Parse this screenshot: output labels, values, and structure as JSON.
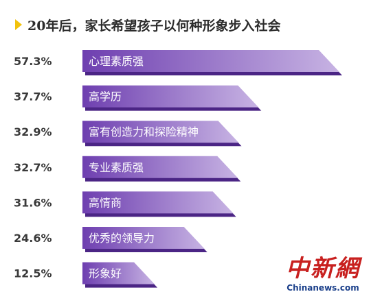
{
  "chart_data": {
    "type": "bar",
    "orientation": "horizontal",
    "title": "20年后，家长希望孩子以何种形象步入社会",
    "categories": [
      "心理素质强",
      "高学历",
      "富有创造力和探险精神",
      "专业素质强",
      "高情商",
      "优秀的领导力",
      "形象好"
    ],
    "values": [
      57.3,
      37.7,
      32.9,
      32.7,
      31.6,
      24.6,
      12.5
    ],
    "value_labels": [
      "57.3%",
      "37.7%",
      "32.9%",
      "32.7%",
      "31.6%",
      "24.6%",
      "12.5%"
    ],
    "unit": "%",
    "grid": false,
    "legend": "none"
  },
  "colors": {
    "bar_start": "#6e3fb0",
    "bar_end": "#c7b3e3",
    "bar_shadow": "#4b2585",
    "title_marker": "#f2c20c",
    "title_text": "#2c2c2c"
  },
  "watermark": {
    "logo_text": "中新網",
    "url": "Chinanews.com"
  }
}
